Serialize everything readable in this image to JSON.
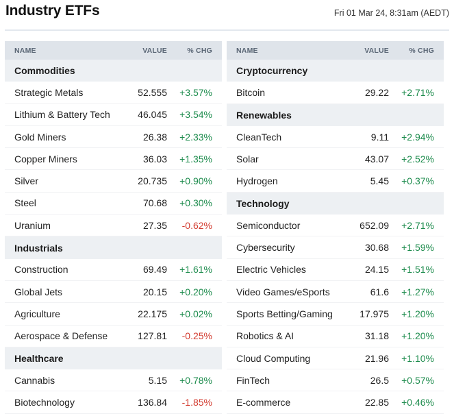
{
  "header": {
    "title": "Industry ETFs",
    "timestamp": "Fri 01 Mar 24, 8:31am (AEDT)"
  },
  "columns": {
    "name": "NAME",
    "value": "VALUE",
    "chg": "% CHG"
  },
  "left": [
    {
      "category": "Commodities",
      "items": [
        {
          "name": "Strategic Metals",
          "value": "52.555",
          "chg": "+3.57%",
          "dir": "pos"
        },
        {
          "name": "Lithium & Battery Tech",
          "value": "46.045",
          "chg": "+3.54%",
          "dir": "pos"
        },
        {
          "name": "Gold Miners",
          "value": "26.38",
          "chg": "+2.33%",
          "dir": "pos"
        },
        {
          "name": "Copper Miners",
          "value": "36.03",
          "chg": "+1.35%",
          "dir": "pos"
        },
        {
          "name": "Silver",
          "value": "20.735",
          "chg": "+0.90%",
          "dir": "pos"
        },
        {
          "name": "Steel",
          "value": "70.68",
          "chg": "+0.30%",
          "dir": "pos"
        },
        {
          "name": "Uranium",
          "value": "27.35",
          "chg": "-0.62%",
          "dir": "neg"
        }
      ]
    },
    {
      "category": "Industrials",
      "items": [
        {
          "name": "Construction",
          "value": "69.49",
          "chg": "+1.61%",
          "dir": "pos"
        },
        {
          "name": "Global Jets",
          "value": "20.15",
          "chg": "+0.20%",
          "dir": "pos"
        },
        {
          "name": "Agriculture",
          "value": "22.175",
          "chg": "+0.02%",
          "dir": "pos"
        },
        {
          "name": "Aerospace & Defense",
          "value": "127.81",
          "chg": "-0.25%",
          "dir": "neg"
        }
      ]
    },
    {
      "category": "Healthcare",
      "items": [
        {
          "name": "Cannabis",
          "value": "5.15",
          "chg": "+0.78%",
          "dir": "pos"
        },
        {
          "name": "Biotechnology",
          "value": "136.84",
          "chg": "-1.85%",
          "dir": "neg"
        }
      ]
    }
  ],
  "right": [
    {
      "category": "Cryptocurrency",
      "items": [
        {
          "name": "Bitcoin",
          "value": "29.22",
          "chg": "+2.71%",
          "dir": "pos"
        }
      ]
    },
    {
      "category": "Renewables",
      "items": [
        {
          "name": "CleanTech",
          "value": "9.11",
          "chg": "+2.94%",
          "dir": "pos"
        },
        {
          "name": "Solar",
          "value": "43.07",
          "chg": "+2.52%",
          "dir": "pos"
        },
        {
          "name": "Hydrogen",
          "value": "5.45",
          "chg": "+0.37%",
          "dir": "pos"
        }
      ]
    },
    {
      "category": "Technology",
      "items": [
        {
          "name": "Semiconductor",
          "value": "652.09",
          "chg": "+2.71%",
          "dir": "pos"
        },
        {
          "name": "Cybersecurity",
          "value": "30.68",
          "chg": "+1.59%",
          "dir": "pos"
        },
        {
          "name": "Electric Vehicles",
          "value": "24.15",
          "chg": "+1.51%",
          "dir": "pos"
        },
        {
          "name": "Video Games/eSports",
          "value": "61.6",
          "chg": "+1.27%",
          "dir": "pos"
        },
        {
          "name": "Sports Betting/Gaming",
          "value": "17.975",
          "chg": "+1.20%",
          "dir": "pos"
        },
        {
          "name": "Robotics & AI",
          "value": "31.18",
          "chg": "+1.20%",
          "dir": "pos"
        },
        {
          "name": "Cloud Computing",
          "value": "21.96",
          "chg": "+1.10%",
          "dir": "pos"
        },
        {
          "name": "FinTech",
          "value": "26.5",
          "chg": "+0.57%",
          "dir": "pos"
        },
        {
          "name": "E-commerce",
          "value": "22.85",
          "chg": "+0.46%",
          "dir": "pos"
        }
      ]
    }
  ],
  "colors": {
    "positive": "#1c8b4c",
    "negative": "#d23a2e",
    "header_bg": "#dfe4ea",
    "category_bg": "#edf0f3"
  }
}
